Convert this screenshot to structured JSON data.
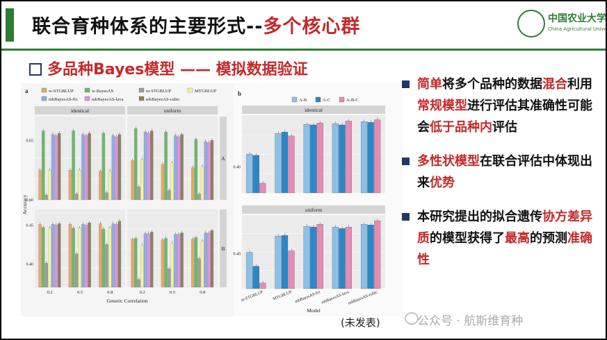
{
  "slide": {
    "title_main": "联合育种体系的主要形式--",
    "title_highlight": "多个核心群",
    "subtitle": "多品种Bayes模型 —— 模拟数据验证",
    "unpublished": "(未发表)",
    "watermark": "公众号 · 航斯维育种",
    "accent_color": "#2e7d32",
    "highlight_color": "#c62828"
  },
  "logo": {
    "name_cn": "中国农业大学",
    "name_en": "China Agricultural University",
    "icon": "university-emblem-icon"
  },
  "bullets": [
    {
      "segments": [
        {
          "text": "简单",
          "red": true
        },
        {
          "text": "将多个品种的数据",
          "red": false
        },
        {
          "text": "混合",
          "red": true
        },
        {
          "text": "利用",
          "red": false
        },
        {
          "text": "常规模型",
          "red": true
        },
        {
          "text": "进行评估其准确性可能会",
          "red": false
        },
        {
          "text": "低于品种内",
          "red": true
        },
        {
          "text": "评估",
          "red": false
        }
      ]
    },
    {
      "segments": [
        {
          "text": "多性状模型",
          "red": true
        },
        {
          "text": "在联合评估中体现出来",
          "red": false
        },
        {
          "text": "优势",
          "red": true
        }
      ]
    },
    {
      "segments": [
        {
          "text": "本研究提出的拟合遗传",
          "red": false
        },
        {
          "text": "协方差异质",
          "red": true
        },
        {
          "text": "的模型获得了",
          "red": false
        },
        {
          "text": "最高",
          "red": true
        },
        {
          "text": "的预测",
          "red": false
        },
        {
          "text": "准确性",
          "red": true
        }
      ]
    }
  ],
  "chart_data": [
    {
      "type": "bar",
      "panel_label": "a",
      "series": [
        {
          "name": "w-STGBLUP",
          "color": "#e8a868"
        },
        {
          "name": "w-BayesAS",
          "color": "#6ab96a"
        },
        {
          "name": "m-STGBLUP",
          "color": "#9e9e9e"
        },
        {
          "name": "MTGBLUP",
          "color": "#f4f49a"
        },
        {
          "name": "mbBayesAS-fix",
          "color": "#8aaee8"
        },
        {
          "name": "mbBayesAS-lava",
          "color": "#e490e0"
        },
        {
          "name": "mbBayesAS-cubic",
          "color": "#8a8060"
        }
      ],
      "facet_columns": [
        "identical",
        "uniform"
      ],
      "facet_rows": [
        "A",
        "B"
      ],
      "categories": [
        "0.2",
        "0.5",
        "0.8"
      ],
      "xlabel": "Genetic Correlation",
      "ylabel": "Accuracy",
      "yticks_A": [
        "0.60",
        "0.65"
      ],
      "yticks_B": [
        "0.40",
        "0.45"
      ],
      "ylim_A": [
        0.6,
        0.67
      ],
      "ylim_B": [
        0.37,
        0.47
      ],
      "values": {
        "A": {
          "identical": [
            [
              0.625,
              0.658,
              0.604,
              0.625,
              0.655,
              0.654,
              0.656
            ],
            [
              0.625,
              0.658,
              0.605,
              0.625,
              0.655,
              0.654,
              0.656
            ],
            [
              0.624,
              0.656,
              0.606,
              0.624,
              0.654,
              0.653,
              0.655
            ]
          ],
          "uniform": [
            [
              0.633,
              0.66,
              0.611,
              0.634,
              0.657,
              0.656,
              0.658
            ],
            [
              0.63,
              0.657,
              0.608,
              0.631,
              0.654,
              0.653,
              0.655
            ],
            [
              0.627,
              0.651,
              0.605,
              0.628,
              0.649,
              0.648,
              0.65
            ]
          ]
        },
        "B": {
          "identical": [
            [
              0.451,
              0.447,
              0.401,
              0.446,
              0.451,
              0.45,
              0.452
            ],
            [
              0.451,
              0.446,
              0.413,
              0.446,
              0.451,
              0.45,
              0.453
            ],
            [
              0.452,
              0.445,
              0.425,
              0.446,
              0.452,
              0.451,
              0.455
            ]
          ],
          "uniform": [
            [
              0.432,
              0.433,
              0.38,
              0.424,
              0.439,
              0.439,
              0.441
            ],
            [
              0.431,
              0.433,
              0.394,
              0.427,
              0.438,
              0.438,
              0.44
            ],
            [
              0.432,
              0.434,
              0.407,
              0.429,
              0.44,
              0.44,
              0.443
            ]
          ]
        }
      }
    },
    {
      "type": "bar",
      "panel_label": "b",
      "series": [
        {
          "name": "A-B",
          "color": "#8cc0e8"
        },
        {
          "name": "A-C",
          "color": "#2a88c8"
        },
        {
          "name": "A-B-C",
          "color": "#e48cb4"
        }
      ],
      "facet_rows": [
        "identical",
        "uniform"
      ],
      "categories": [
        "m-STGBLUP",
        "MTGBLUP",
        "mbBayesAS-fix",
        "mbBayesAS-lava",
        "mbBayesAS-cubic"
      ],
      "xlabel": "Model",
      "ytick": "0.40",
      "values": {
        "identical": [
          [
            0.42,
            0.418,
            0.375
          ],
          [
            0.452,
            0.454,
            0.448
          ],
          [
            0.466,
            0.465,
            0.468
          ],
          [
            0.467,
            0.465,
            0.471
          ],
          [
            0.47,
            0.469,
            0.473
          ]
        ],
        "uniform": [
          [
            0.402,
            0.382,
            0.358
          ],
          [
            0.425,
            0.426,
            0.404
          ],
          [
            0.439,
            0.438,
            0.442
          ],
          [
            0.438,
            0.436,
            0.438
          ],
          [
            0.442,
            0.441,
            0.447
          ]
        ]
      }
    }
  ]
}
